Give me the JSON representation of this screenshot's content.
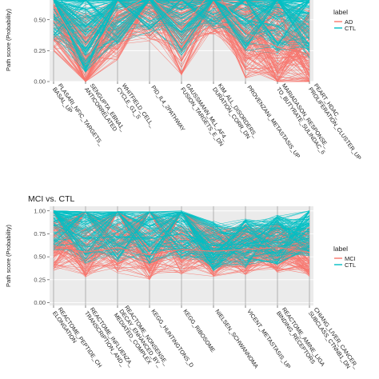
{
  "chart_data": [
    {
      "type": "line",
      "subtype": "parallel-coordinates",
      "title": "",
      "ylabel": "Path score (Probability)",
      "ylim": [
        0,
        1
      ],
      "yticks": [
        0.0,
        0.25,
        0.5
      ],
      "ytick_labels": [
        "0.00",
        "0.25",
        "0.50"
      ],
      "categories": [
        [
          "PLASARI_NFIC_TARGETS_",
          "BASAL_UP"
        ],
        [
          "SENGUPTA_EBNA1_",
          "ANTICORRELATED"
        ],
        [
          "WHITFIELD_CELL_",
          "CYCLE_G1_S"
        ],
        [
          "PID_IL4_2PATHWAY"
        ],
        [
          "GAUSSMANN_MLL_AF4_",
          "FUSION_TARGETS_E_DN"
        ],
        [
          "KIM_ALL_DISORDERS_",
          "DURATION_CORR_DN"
        ],
        [
          "PROVENZANI_METASTASIS_UP"
        ],
        [
          "MARIADASON_RESPONSE_",
          "TO_BUTYRATE_SULINDAC_6"
        ],
        [
          "PEART_HDAC_",
          "PROLIFERATION_CLUSTER_UP"
        ]
      ],
      "legend": {
        "title": "label",
        "position": "right",
        "entries": [
          "AD",
          "CTL"
        ]
      },
      "colors": {
        "AD": "#f8766d",
        "CTL": "#00bfc4"
      },
      "series": [
        {
          "name": "AD",
          "summary": "median path",
          "values": [
            0.62,
            0.18,
            0.55,
            0.7,
            0.42,
            0.75,
            0.4,
            0.28,
            0.22
          ]
        },
        {
          "name": "CTL",
          "summary": "median path",
          "values": [
            0.72,
            0.45,
            0.68,
            0.74,
            0.58,
            0.8,
            0.62,
            0.6,
            0.55
          ]
        }
      ],
      "grid": true
    },
    {
      "type": "line",
      "subtype": "parallel-coordinates",
      "title": "MCI vs. CTL",
      "ylabel": "Path score (Probability)",
      "ylim": [
        0,
        1
      ],
      "yticks": [
        0.0,
        0.25,
        0.5,
        0.75,
        1.0
      ],
      "ytick_labels": [
        "0.00",
        "0.25",
        "0.50",
        "0.75",
        "1.00"
      ],
      "categories": [
        [
          "REACTOME_PEPTIDE_CH",
          "ELONGATION"
        ],
        [
          "REACTOME_INFLUENZA_",
          "TRANSCRIPTION_AND_"
        ],
        [
          "REACTOME_NONSENSE_",
          "DECAY_ENHANCED_BY_",
          "MEDIATED_COMPLEX"
        ],
        [
          "KEGG_HUNTINGTONS_D"
        ],
        [
          "KEGG_RIBOSOME"
        ],
        [
          "NIELSEN_SCHWANNOMA"
        ],
        [
          "VICENT_METASTASIS_UP"
        ],
        [
          "REACTOME_AMINE_LIGA",
          "BINDING_RECEPTORS"
        ],
        [
          "CHIANG_LIVER_CANCER_",
          "SUBCLASS_CTNNB1_DN"
        ]
      ],
      "legend": {
        "title": "label",
        "position": "right",
        "entries": [
          "MCI",
          "CTL"
        ]
      },
      "colors": {
        "MCI": "#f8766d",
        "CTL": "#00bfc4"
      },
      "series": [
        {
          "name": "MCI",
          "summary": "median path",
          "values": [
            0.62,
            0.55,
            0.6,
            0.52,
            0.58,
            0.56,
            0.58,
            0.6,
            0.55
          ]
        },
        {
          "name": "CTL",
          "summary": "median path",
          "values": [
            0.85,
            0.7,
            0.72,
            0.7,
            0.75,
            0.62,
            0.64,
            0.68,
            0.78
          ]
        }
      ],
      "grid": true
    }
  ]
}
